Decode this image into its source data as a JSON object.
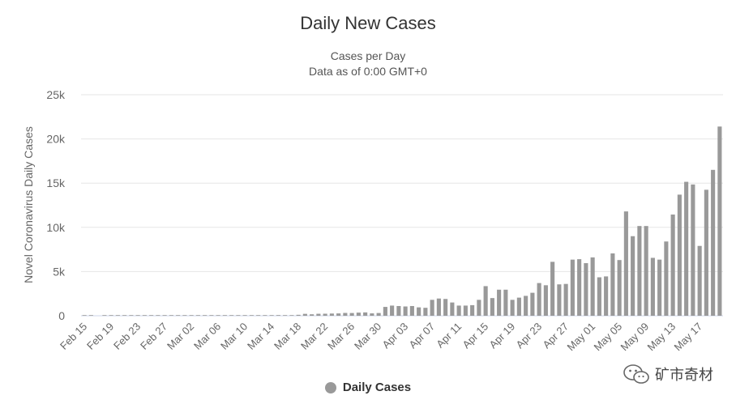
{
  "chart_data": {
    "type": "bar",
    "title": "Daily New Cases",
    "subtitle_lines": [
      "Cases per Day",
      "Data as of 0:00 GMT+0"
    ],
    "ylabel": "Novel Coronavirus Daily Cases",
    "xlabel": "",
    "ylim": [
      0,
      25000
    ],
    "y_ticks": [
      0,
      5000,
      10000,
      15000,
      20000,
      25000
    ],
    "y_tick_labels": [
      "0",
      "5k",
      "10k",
      "15k",
      "20k",
      "25k"
    ],
    "grid": true,
    "legend": "bottom-center",
    "categories": [
      "Feb 15",
      "Feb 16",
      "Feb 17",
      "Feb 18",
      "Feb 19",
      "Feb 20",
      "Feb 21",
      "Feb 22",
      "Feb 23",
      "Feb 24",
      "Feb 25",
      "Feb 26",
      "Feb 27",
      "Feb 28",
      "Feb 29",
      "Mar 01",
      "Mar 02",
      "Mar 03",
      "Mar 04",
      "Mar 05",
      "Mar 06",
      "Mar 07",
      "Mar 08",
      "Mar 09",
      "Mar 10",
      "Mar 11",
      "Mar 12",
      "Mar 13",
      "Mar 14",
      "Mar 15",
      "Mar 16",
      "Mar 17",
      "Mar 18",
      "Mar 19",
      "Mar 20",
      "Mar 21",
      "Mar 22",
      "Mar 23",
      "Mar 24",
      "Mar 25",
      "Mar 26",
      "Mar 27",
      "Mar 28",
      "Mar 29",
      "Mar 30",
      "Mar 31",
      "Apr 01",
      "Apr 02",
      "Apr 03",
      "Apr 04",
      "Apr 05",
      "Apr 06",
      "Apr 07",
      "Apr 08",
      "Apr 09",
      "Apr 10",
      "Apr 11",
      "Apr 12",
      "Apr 13",
      "Apr 14",
      "Apr 15",
      "Apr 16",
      "Apr 17",
      "Apr 18",
      "Apr 19",
      "Apr 20",
      "Apr 21",
      "Apr 22",
      "Apr 23",
      "Apr 24",
      "Apr 25",
      "Apr 26",
      "Apr 27",
      "Apr 28",
      "Apr 29",
      "Apr 30",
      "May 01",
      "May 02",
      "May 03",
      "May 04",
      "May 05",
      "May 06",
      "May 07",
      "May 08",
      "May 09",
      "May 10",
      "May 11",
      "May 12",
      "May 13",
      "May 14",
      "May 15",
      "May 16",
      "May 17",
      "May 18",
      "May 19",
      "May 20"
    ],
    "x_tick_labels": [
      "Feb 15",
      "Feb 19",
      "Feb 23",
      "Feb 27",
      "Mar 02",
      "Mar 06",
      "Mar 10",
      "Mar 14",
      "Mar 18",
      "Mar 22",
      "Mar 26",
      "Mar 30",
      "Apr 03",
      "Apr 07",
      "Apr 11",
      "Apr 15",
      "Apr 19",
      "Apr 23",
      "Apr 27",
      "May 01",
      "May 05",
      "May 09",
      "May 13",
      "May 17"
    ],
    "series": [
      {
        "name": "Daily Cases",
        "color": "#999999",
        "values": [
          2,
          1,
          0,
          3,
          2,
          1,
          2,
          3,
          1,
          2,
          3,
          3,
          4,
          6,
          3,
          5,
          2,
          6,
          5,
          8,
          13,
          6,
          12,
          20,
          25,
          34,
          52,
          50,
          52,
          78,
          34,
          64,
          106,
          215,
          165,
          224,
          230,
          250,
          265,
          320,
          310,
          355,
          380,
          270,
          310,
          1000,
          1150,
          1100,
          1050,
          1100,
          950,
          900,
          1800,
          1950,
          1900,
          1500,
          1150,
          1150,
          1200,
          1800,
          3350,
          2000,
          2950,
          2950,
          1800,
          2050,
          2250,
          2600,
          3700,
          3450,
          6100,
          3550,
          3600,
          6350,
          6400,
          5950,
          6600,
          4350,
          4450,
          7050,
          6300,
          11800,
          9000,
          10150,
          10150,
          6550,
          6350,
          8400,
          11450,
          13700,
          15150,
          14850,
          7900,
          14250,
          16500,
          21400
        ]
      }
    ]
  },
  "legend": {
    "items": [
      {
        "label": "Daily Cases",
        "color": "#999999"
      }
    ]
  },
  "watermark": {
    "text": "矿市奇材",
    "icon": "wechat-icon"
  }
}
